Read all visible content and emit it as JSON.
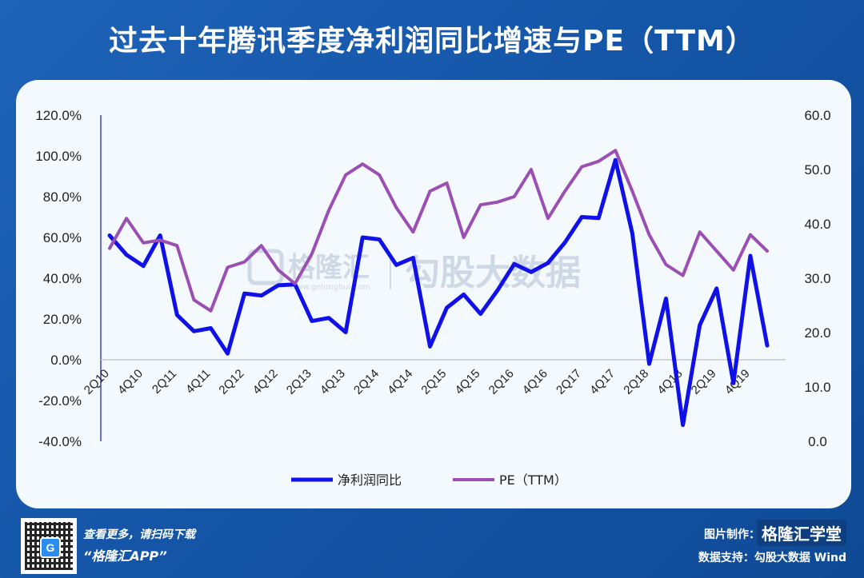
{
  "title": "过去十年腾讯季度净利润同比增速与PE（TTM）",
  "footer": {
    "scan_text": "查看更多，请扫码下载",
    "app_name": "“格隆汇APP”",
    "made_by_label": "图片制作：",
    "brand": "格隆汇学堂",
    "source": "数据支持：勾股大数据 Wind"
  },
  "watermark": {
    "brand": "格隆汇",
    "url": "www.gelonghui.com",
    "data": "勾股大数据"
  },
  "colors": {
    "series1": "#1010e8",
    "series2": "#9b4fb3",
    "left_axis": "#4040c0",
    "zero_line": "#c8c8c8"
  },
  "chart_data": {
    "type": "line",
    "title": "过去十年腾讯季度净利润同比增速与PE（TTM）",
    "legend_position": "bottom",
    "grid": false,
    "y_left": {
      "min": -40,
      "max": 120,
      "ticks": [
        "120.0%",
        "100.0%",
        "80.0%",
        "60.0%",
        "40.0%",
        "20.0%",
        "0.0%",
        "-20.0%",
        "-40.0%"
      ]
    },
    "y_right": {
      "min": 0,
      "max": 60,
      "ticks": [
        "60.0",
        "50.0",
        "40.0",
        "30.0",
        "20.0",
        "10.0",
        "0.0"
      ]
    },
    "x": [
      "2Q10",
      "3Q10",
      "4Q10",
      "1Q11",
      "2Q11",
      "3Q11",
      "4Q11",
      "1Q12",
      "2Q12",
      "3Q12",
      "4Q12",
      "1Q13",
      "2Q13",
      "3Q13",
      "4Q13",
      "1Q14",
      "2Q14",
      "3Q14",
      "4Q14",
      "1Q15",
      "2Q15",
      "3Q15",
      "4Q15",
      "1Q16",
      "2Q16",
      "3Q16",
      "4Q16",
      "1Q17",
      "2Q17",
      "3Q17",
      "4Q17",
      "1Q18",
      "2Q18",
      "3Q18",
      "4Q18",
      "1Q19",
      "2Q19",
      "3Q19",
      "4Q19",
      "1Q20"
    ],
    "x_tick_labels": [
      "2Q10",
      "4Q10",
      "2Q11",
      "4Q11",
      "2Q12",
      "4Q12",
      "2Q13",
      "4Q13",
      "2Q14",
      "4Q14",
      "2Q15",
      "4Q15",
      "2Q16",
      "4Q16",
      "2Q17",
      "4Q17",
      "2Q18",
      "4Q18",
      "2Q19",
      "4Q19"
    ],
    "series": [
      {
        "name": "净利润同比",
        "axis": "left",
        "values": [
          61,
          51.5,
          46,
          61,
          22,
          14,
          15.5,
          3,
          32.5,
          31.5,
          36.5,
          37,
          19,
          20.5,
          13.5,
          60,
          59,
          46.5,
          50,
          6.5,
          25.5,
          32,
          22.5,
          34,
          47,
          43,
          47.5,
          57.5,
          70,
          69.5,
          98,
          62,
          -2,
          30,
          -32,
          17,
          35,
          -11.5,
          51,
          7
        ]
      },
      {
        "name": "PE（TTM）",
        "axis": "right",
        "values": [
          35.5,
          41,
          36.5,
          37,
          36,
          26,
          24,
          32,
          33,
          36,
          31.5,
          29,
          34.5,
          42.5,
          49,
          51,
          49,
          43,
          38.5,
          46,
          47.5,
          37.5,
          43.5,
          44,
          45,
          50,
          41,
          46,
          50.5,
          51.5,
          53.5,
          46,
          38,
          32.5,
          30.5,
          38.5,
          35,
          31.5,
          38,
          35
        ]
      }
    ]
  }
}
